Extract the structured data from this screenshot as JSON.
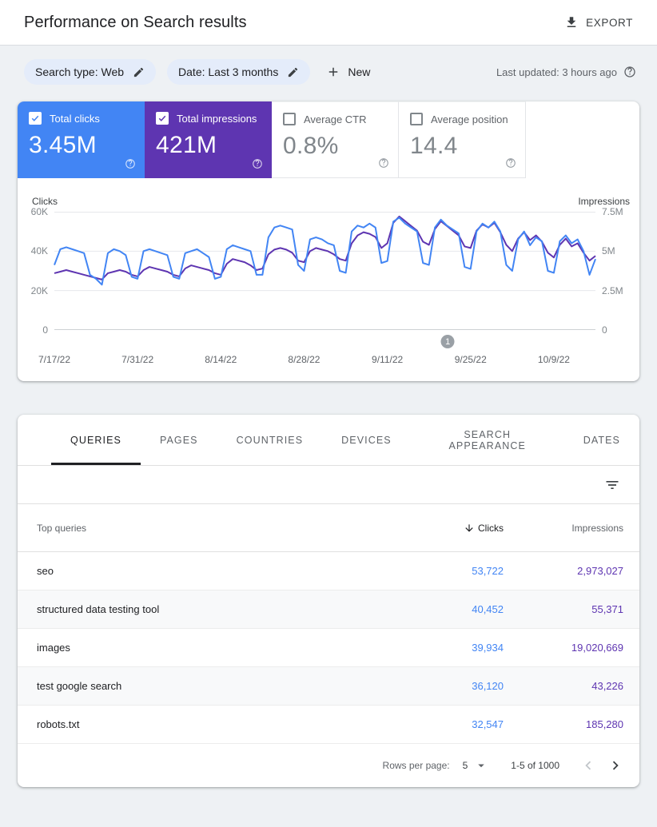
{
  "header": {
    "title": "Performance on Search results",
    "export_label": "EXPORT"
  },
  "filters": {
    "search_type": "Search type: Web",
    "date": "Date: Last 3 months",
    "new_label": "New",
    "last_updated": "Last updated: 3 hours ago"
  },
  "metrics": [
    {
      "label": "Total clicks",
      "value": "3.45M",
      "selected": true,
      "color": "#4285f4"
    },
    {
      "label": "Total impressions",
      "value": "421M",
      "selected": true,
      "color": "#5e35b1"
    },
    {
      "label": "Average CTR",
      "value": "0.8%",
      "selected": false
    },
    {
      "label": "Average position",
      "value": "14.4",
      "selected": false
    }
  ],
  "chart_data": {
    "type": "line",
    "left_axis": {
      "label": "Clicks",
      "ticks": [
        "60K",
        "40K",
        "20K",
        "0"
      ],
      "max": 60000
    },
    "right_axis": {
      "label": "Impressions",
      "ticks": [
        "7.5M",
        "5M",
        "2.5M",
        "0"
      ],
      "max": 7500000
    },
    "x_tick_labels": [
      "7/17/22",
      "7/31/22",
      "8/14/22",
      "8/28/22",
      "9/11/22",
      "9/25/22",
      "10/9/22"
    ],
    "annotation_marker": {
      "label": "1",
      "x_fraction": 0.727
    },
    "grid": true,
    "legend_position": "none",
    "series": [
      {
        "name": "Clicks",
        "color": "#4285f4",
        "axis_max": 60,
        "unit": "thousands",
        "values": [
          33,
          41,
          42,
          41,
          40,
          39,
          28,
          26,
          23,
          39,
          41,
          40,
          38,
          27,
          26,
          40,
          41,
          40,
          39,
          38,
          27,
          26,
          39,
          40,
          41,
          39,
          37,
          26,
          27,
          41,
          43,
          42,
          41,
          40,
          28,
          28,
          47,
          52,
          53,
          52,
          51,
          33,
          30,
          46,
          47,
          46,
          44,
          43,
          30,
          29,
          50,
          53,
          52,
          54,
          52,
          34,
          35,
          55,
          57,
          54,
          52,
          50,
          34,
          33,
          52,
          56,
          53,
          51,
          49,
          32,
          31,
          50,
          54,
          52,
          55,
          50,
          33,
          30,
          46,
          50,
          43,
          47,
          45,
          30,
          29,
          45,
          48,
          44,
          46,
          40,
          28,
          36
        ]
      },
      {
        "name": "Impressions",
        "color": "#5e35b1",
        "axis_max": 7.5,
        "unit": "millions",
        "values": [
          3.6,
          3.7,
          3.8,
          3.7,
          3.6,
          3.5,
          3.4,
          3.3,
          3.2,
          3.6,
          3.7,
          3.8,
          3.7,
          3.5,
          3.4,
          3.8,
          4.0,
          3.9,
          3.8,
          3.7,
          3.5,
          3.4,
          3.9,
          4.1,
          4.0,
          3.9,
          3.8,
          3.6,
          3.5,
          4.2,
          4.5,
          4.4,
          4.3,
          4.1,
          3.8,
          3.9,
          4.8,
          5.1,
          5.2,
          5.1,
          4.9,
          4.4,
          4.3,
          5.0,
          5.2,
          5.1,
          5.0,
          4.8,
          4.5,
          4.4,
          5.5,
          6.0,
          6.2,
          6.1,
          5.9,
          5.2,
          5.5,
          6.8,
          7.2,
          6.9,
          6.6,
          6.3,
          5.6,
          5.4,
          6.4,
          6.9,
          6.6,
          6.3,
          6.0,
          5.3,
          5.2,
          6.3,
          6.7,
          6.5,
          6.8,
          6.2,
          5.4,
          5.0,
          5.8,
          6.2,
          5.7,
          6.0,
          5.6,
          4.9,
          4.6,
          5.4,
          5.8,
          5.3,
          5.5,
          4.9,
          4.4,
          4.7
        ]
      }
    ]
  },
  "table": {
    "tabs": [
      {
        "label": "QUERIES",
        "active": true
      },
      {
        "label": "PAGES",
        "active": false
      },
      {
        "label": "COUNTRIES",
        "active": false
      },
      {
        "label": "DEVICES",
        "active": false
      },
      {
        "label": "SEARCH APPEARANCE",
        "active": false
      },
      {
        "label": "DATES",
        "active": false
      }
    ],
    "columns": {
      "dimension": "Top queries",
      "clicks": "Clicks",
      "impressions": "Impressions"
    },
    "rows": [
      {
        "query": "seo",
        "clicks": "53,722",
        "impressions": "2,973,027"
      },
      {
        "query": "structured data testing tool",
        "clicks": "40,452",
        "impressions": "55,371"
      },
      {
        "query": "images",
        "clicks": "39,934",
        "impressions": "19,020,669"
      },
      {
        "query": "test google search",
        "clicks": "36,120",
        "impressions": "43,226"
      },
      {
        "query": "robots.txt",
        "clicks": "32,547",
        "impressions": "185,280"
      }
    ],
    "footer": {
      "rows_per_page_label": "Rows per page:",
      "rows_per_page_value": "5",
      "range": "1-5 of 1000"
    }
  },
  "icons": {
    "export": "download-icon",
    "chip_edit": "pencil-icon",
    "new": "plus-icon",
    "help": "question-circle-icon",
    "table_filter": "filter-list-icon",
    "sort": "arrow-down-icon",
    "rows_per_page": "dropdown-arrow-icon",
    "prev": "chevron-left-icon",
    "next": "chevron-right-icon"
  },
  "colors": {
    "clicks_blue": "#4285f4",
    "impressions_purple": "#5e35b1",
    "page_bg": "#eef1f4"
  }
}
